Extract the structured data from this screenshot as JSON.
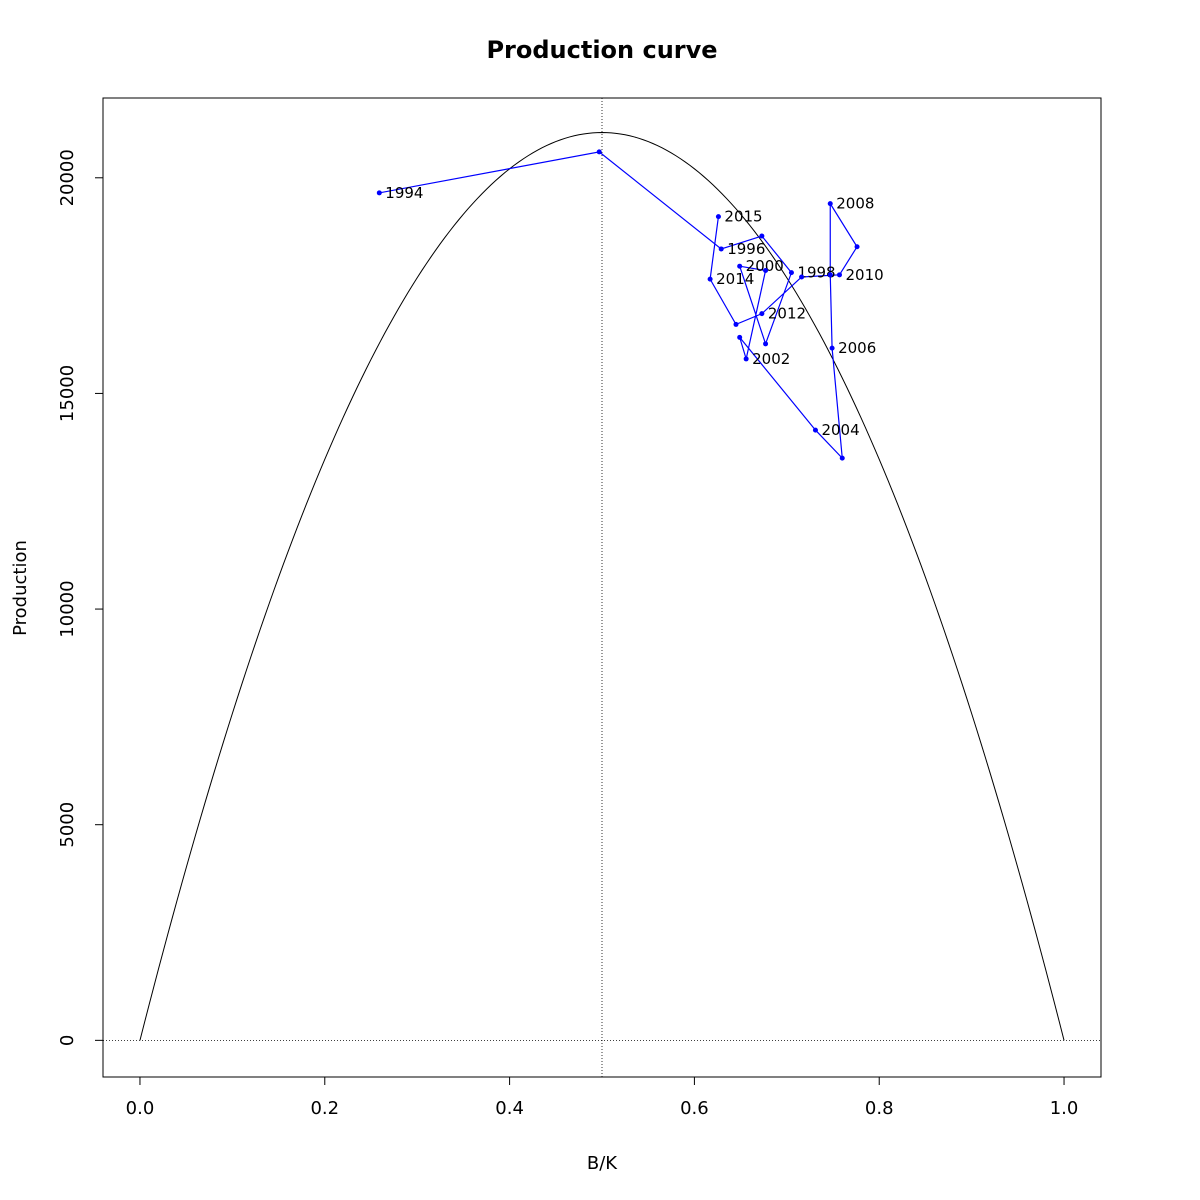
{
  "chart_data": {
    "type": "scatter",
    "title": "Production curve",
    "xlabel": "B/K",
    "ylabel": "Production",
    "xlim": [
      -0.04,
      1.04
    ],
    "ylim": [
      -850,
      21850
    ],
    "x_ticks": [
      "0.0",
      "0.2",
      "0.4",
      "0.6",
      "0.8",
      "1.0"
    ],
    "y_ticks": [
      "0",
      "5000",
      "10000",
      "15000",
      "20000"
    ],
    "grid": false,
    "curve": {
      "type": "parabola",
      "peak_x": 0.5,
      "peak_y": 21050,
      "x_range": [
        0,
        1
      ],
      "color": "#000000"
    },
    "reference_lines": {
      "vertical_x": 0.5,
      "horizontal_y": 0,
      "style": "dotted"
    },
    "series": [
      {
        "color": "#0000ff",
        "points": [
          {
            "x": 0.259,
            "y": 19650,
            "label": "1994"
          },
          {
            "x": 0.497,
            "y": 20600,
            "label": ""
          },
          {
            "x": 0.629,
            "y": 18350,
            "label": "1996"
          },
          {
            "x": 0.673,
            "y": 18650,
            "label": ""
          },
          {
            "x": 0.705,
            "y": 17800,
            "label": "1998"
          },
          {
            "x": 0.677,
            "y": 16150,
            "label": ""
          },
          {
            "x": 0.649,
            "y": 17950,
            "label": "2000"
          },
          {
            "x": 0.677,
            "y": 17850,
            "label": ""
          },
          {
            "x": 0.656,
            "y": 15800,
            "label": "2002"
          },
          {
            "x": 0.649,
            "y": 16300,
            "label": ""
          },
          {
            "x": 0.731,
            "y": 14150,
            "label": "2004"
          },
          {
            "x": 0.76,
            "y": 13500,
            "label": ""
          },
          {
            "x": 0.749,
            "y": 16050,
            "label": "2006"
          },
          {
            "x": 0.747,
            "y": 17750,
            "label": ""
          },
          {
            "x": 0.747,
            "y": 19400,
            "label": "2008"
          },
          {
            "x": 0.776,
            "y": 18400,
            "label": ""
          },
          {
            "x": 0.757,
            "y": 17750,
            "label": "2010"
          },
          {
            "x": 0.716,
            "y": 17700,
            "label": ""
          },
          {
            "x": 0.673,
            "y": 16850,
            "label": "2012"
          },
          {
            "x": 0.645,
            "y": 16600,
            "label": ""
          },
          {
            "x": 0.617,
            "y": 17650,
            "label": "2014"
          },
          {
            "x": 0.626,
            "y": 19100,
            "label": "2015"
          }
        ]
      }
    ]
  }
}
